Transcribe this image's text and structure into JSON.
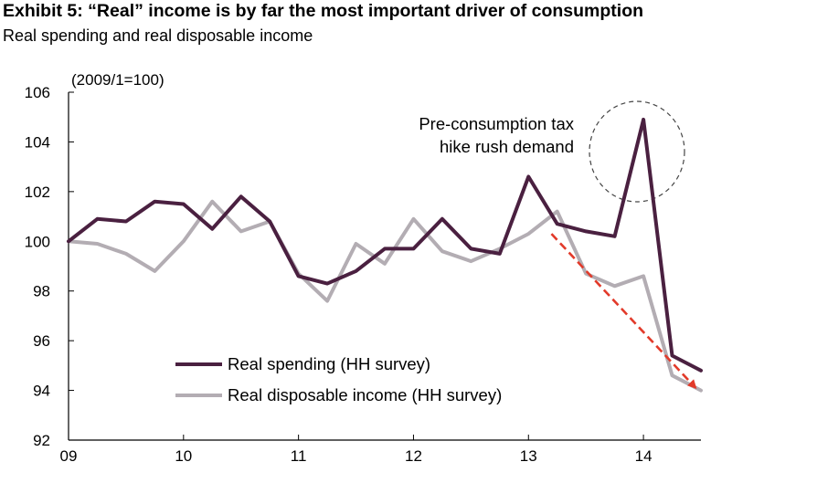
{
  "header": {
    "title": "Exhibit 5: “Real” income is by far the most important driver of consumption",
    "subtitle": "Real spending and real disposable income"
  },
  "chart_data": {
    "type": "line",
    "unit_label": "(2009/1=100)",
    "x_tick_labels": [
      "09",
      "10",
      "11",
      "12",
      "13",
      "14"
    ],
    "y_tick_labels": [
      "92",
      "94",
      "96",
      "98",
      "100",
      "102",
      "104",
      "106"
    ],
    "ylim": [
      92,
      106
    ],
    "xlim": [
      0,
      5.5
    ],
    "grid": false,
    "legend_position": "bottom-left",
    "annotation": {
      "lines": [
        "Pre-consumption tax",
        "hike rush demand"
      ]
    },
    "series": [
      {
        "name": "Real spending (HH survey)",
        "color": "#4a2040",
        "x": [
          0,
          0.25,
          0.5,
          0.75,
          1.0,
          1.25,
          1.5,
          1.75,
          2.0,
          2.25,
          2.5,
          2.75,
          3.0,
          3.25,
          3.5,
          3.75,
          4.0,
          4.25,
          4.5,
          4.75,
          5.0,
          5.25,
          5.5
        ],
        "values": [
          100.0,
          100.9,
          100.8,
          101.6,
          101.5,
          100.5,
          101.8,
          100.8,
          98.6,
          98.3,
          98.8,
          99.7,
          99.7,
          100.9,
          99.7,
          99.5,
          102.6,
          100.7,
          100.4,
          100.2,
          104.9,
          95.4,
          94.8
        ]
      },
      {
        "name": "Real disposable income (HH survey)",
        "color": "#b3adb3",
        "x": [
          0,
          0.25,
          0.5,
          0.75,
          1.0,
          1.25,
          1.5,
          1.75,
          2.0,
          2.25,
          2.5,
          2.75,
          3.0,
          3.25,
          3.5,
          3.75,
          4.0,
          4.25,
          4.5,
          4.75,
          5.0,
          5.25,
          5.5
        ],
        "values": [
          100.0,
          99.9,
          99.5,
          98.8,
          100.0,
          101.6,
          100.4,
          100.8,
          98.7,
          97.6,
          99.9,
          99.1,
          100.9,
          99.6,
          99.2,
          99.7,
          100.3,
          101.2,
          98.7,
          98.2,
          98.6,
          94.6,
          94.0
        ]
      }
    ],
    "trend_arrow": {
      "color": "#e23a2a",
      "from": [
        4.2,
        100.3
      ],
      "to": [
        5.5,
        94.0
      ]
    }
  }
}
